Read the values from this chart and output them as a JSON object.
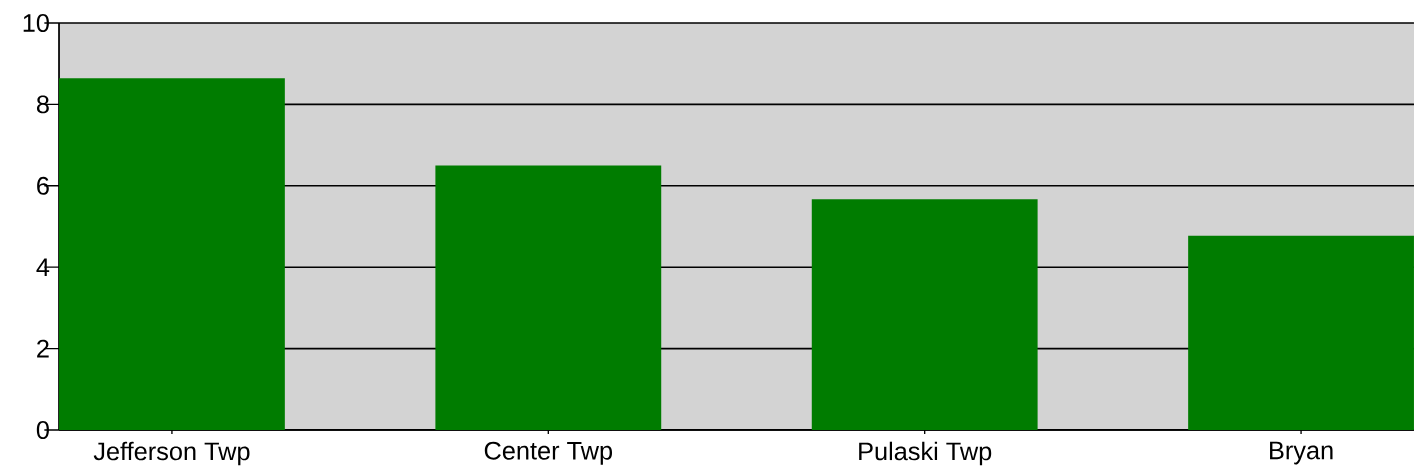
{
  "chart_data": {
    "type": "bar",
    "categories": [
      "Jefferson Twp",
      "Center Twp",
      "Pulaski Twp",
      "Bryan"
    ],
    "values": [
      8.64,
      6.5,
      5.67,
      4.77
    ],
    "color": "#007c00",
    "ylim": [
      0,
      10
    ],
    "yticks": [
      0,
      2,
      4,
      6,
      8,
      10
    ],
    "grid": "y"
  }
}
